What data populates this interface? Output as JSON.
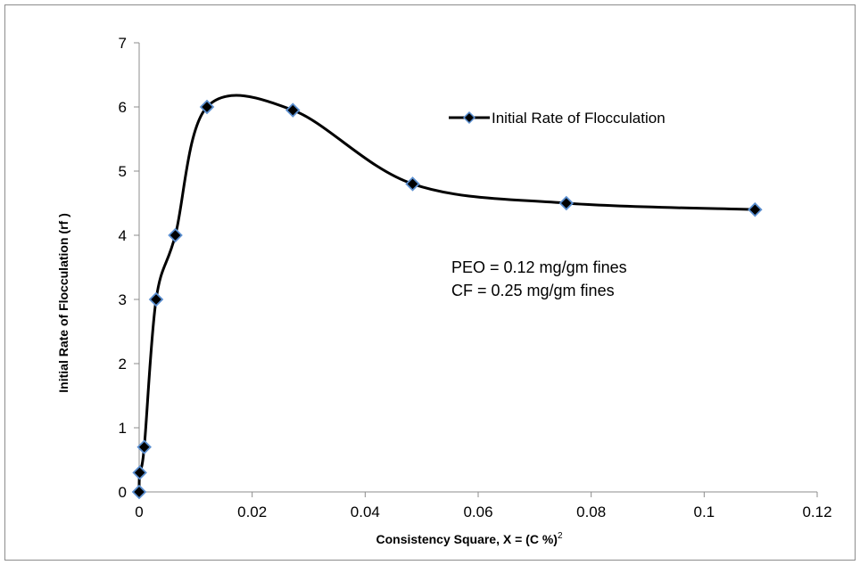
{
  "chart_data": {
    "type": "line",
    "title": "",
    "xlabel": "Consistency Square, X = (C %)",
    "xlabel_superscript": "2",
    "ylabel": "Initial Rate of Flocculation (rf )",
    "xlim": [
      0,
      0.12
    ],
    "ylim": [
      0,
      7
    ],
    "x_ticks": [
      "0",
      "0.02",
      "0.04",
      "0.06",
      "0.08",
      "0.1",
      "0.12"
    ],
    "y_ticks": [
      "0",
      "1",
      "2",
      "3",
      "4",
      "5",
      "6",
      "7"
    ],
    "x_tick_values": [
      0,
      0.02,
      0.04,
      0.06,
      0.08,
      0.1,
      0.12
    ],
    "y_tick_values": [
      0,
      1,
      2,
      3,
      4,
      5,
      6,
      7
    ],
    "grid": false,
    "smooth": true,
    "legend_position": "top-right",
    "series": [
      {
        "name": "Initial Rate of Flocculation",
        "color": "#000000",
        "marker": "diamond",
        "marker_fill": "#000000",
        "marker_edge": "#5b8fd0",
        "x": [
          0,
          0.0001,
          0.0009,
          0.003,
          0.0064,
          0.012,
          0.0272,
          0.0484,
          0.0756,
          0.109
        ],
        "y": [
          0,
          0.3,
          0.7,
          3.0,
          4.0,
          6.0,
          5.95,
          4.8,
          4.5,
          4.4
        ]
      }
    ],
    "annotations": [
      "PEO = 0.12 mg/gm fines",
      "CF = 0.25 mg/gm fines"
    ]
  }
}
